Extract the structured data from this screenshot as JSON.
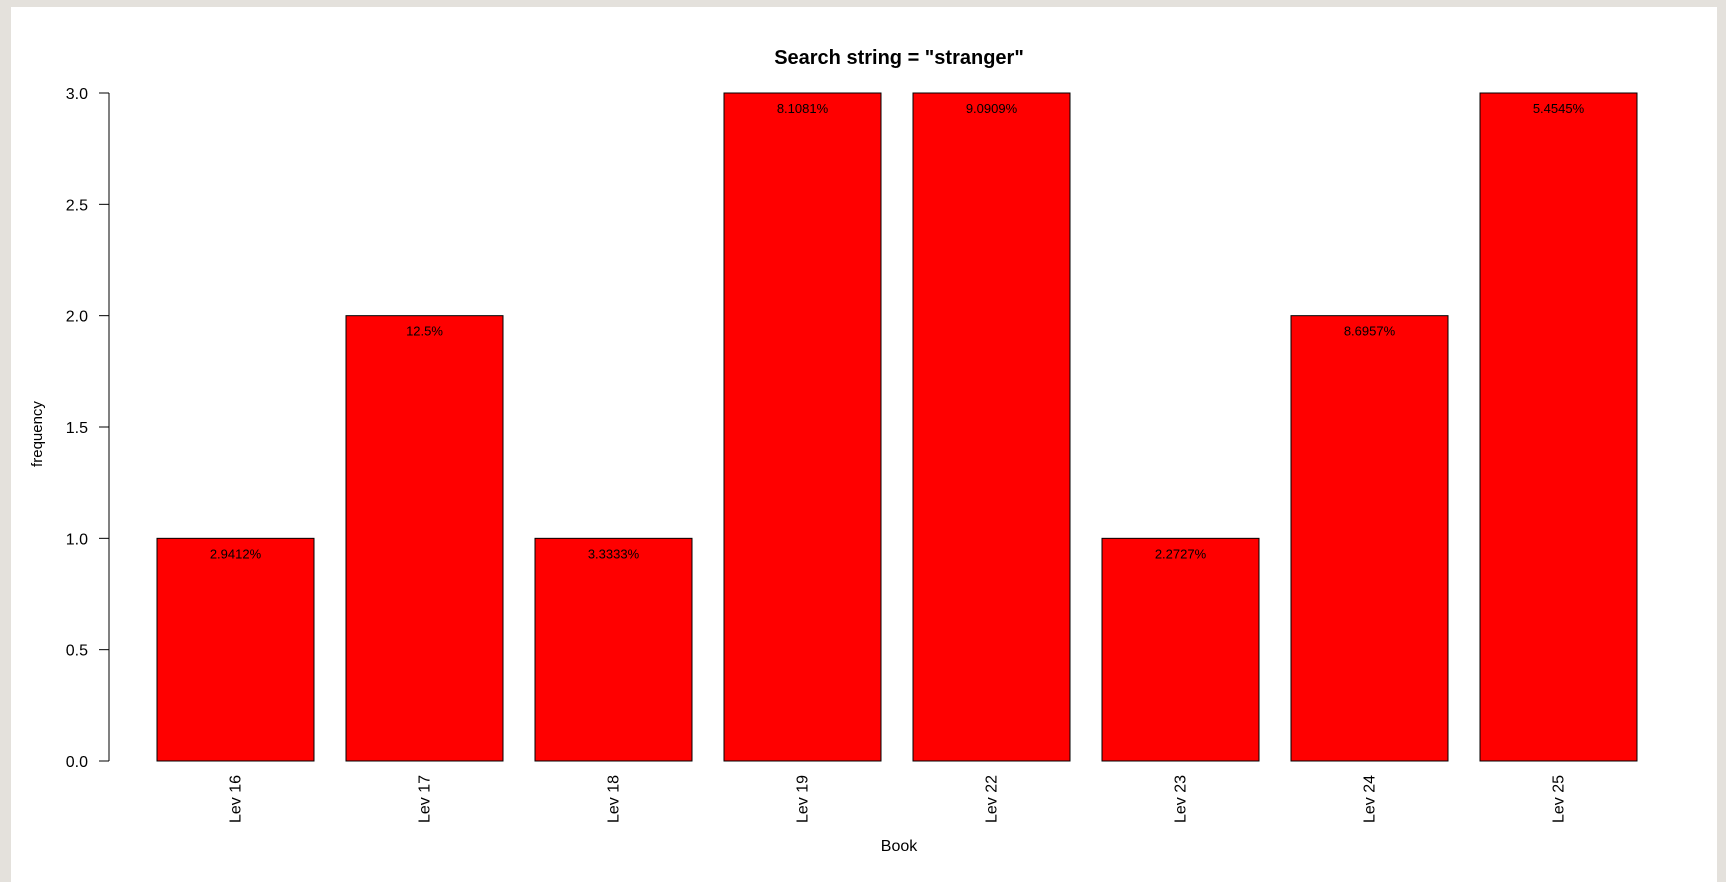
{
  "chart_data": {
    "type": "bar",
    "title": "Search string = \"stranger\"",
    "xlabel": "Book",
    "ylabel": "frequency",
    "categories": [
      "Lev 16",
      "Lev 17",
      "Lev 18",
      "Lev 19",
      "Lev 22",
      "Lev 23",
      "Lev 24",
      "Lev 25"
    ],
    "values": [
      1,
      2,
      1,
      3,
      3,
      1,
      2,
      3
    ],
    "bar_labels": [
      "2.9412%",
      "12.5%",
      "3.3333%",
      "8.1081%",
      "9.0909%",
      "2.2727%",
      "8.6957%",
      "5.4545%"
    ],
    "ylim": [
      0,
      3
    ],
    "yticks": [
      "0.0",
      "0.5",
      "1.0",
      "1.5",
      "2.0",
      "2.5",
      "3.0"
    ],
    "bar_color": "#ff0000",
    "grid": false,
    "legend": "none"
  }
}
